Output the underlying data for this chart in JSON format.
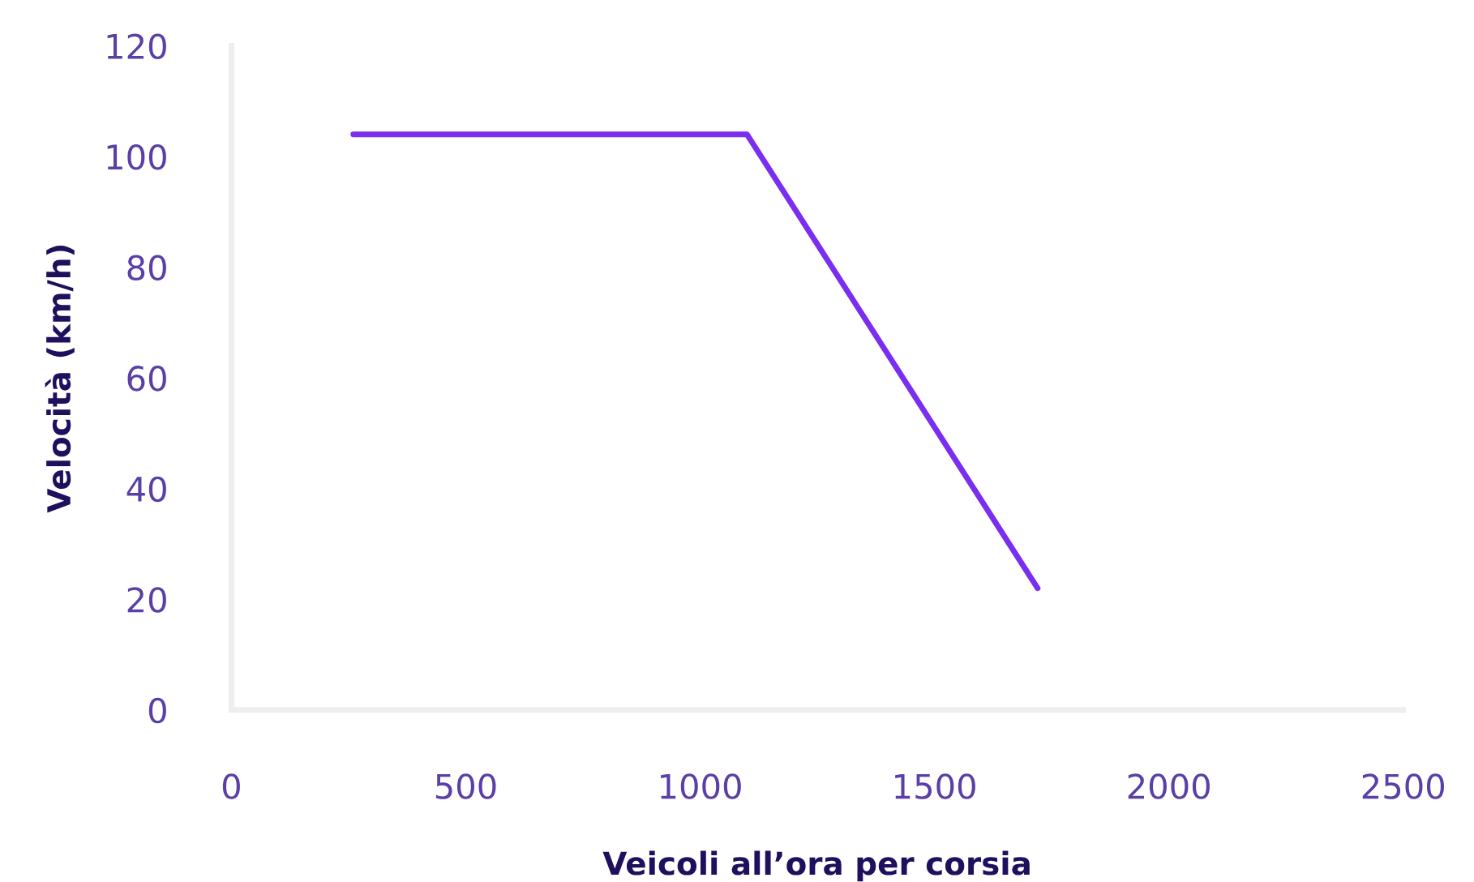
{
  "chart_data": {
    "type": "line",
    "xlabel": "Veicoli all’ora per corsia",
    "ylabel": "Velocità (km/h)",
    "series": [
      {
        "color": "#7a2ff0",
        "x": [
          260,
          1100,
          1720
        ],
        "values": [
          104,
          104,
          22
        ]
      }
    ],
    "xlim": [
      0,
      2500
    ],
    "xticks": [
      0,
      500,
      1000,
      1500,
      2000,
      2500
    ],
    "ylim": [
      0,
      120
    ],
    "yticks": [
      0,
      20,
      40,
      60,
      80,
      100,
      120
    ],
    "grid": false,
    "legend": false,
    "marker": "none",
    "line_style": "solid"
  }
}
